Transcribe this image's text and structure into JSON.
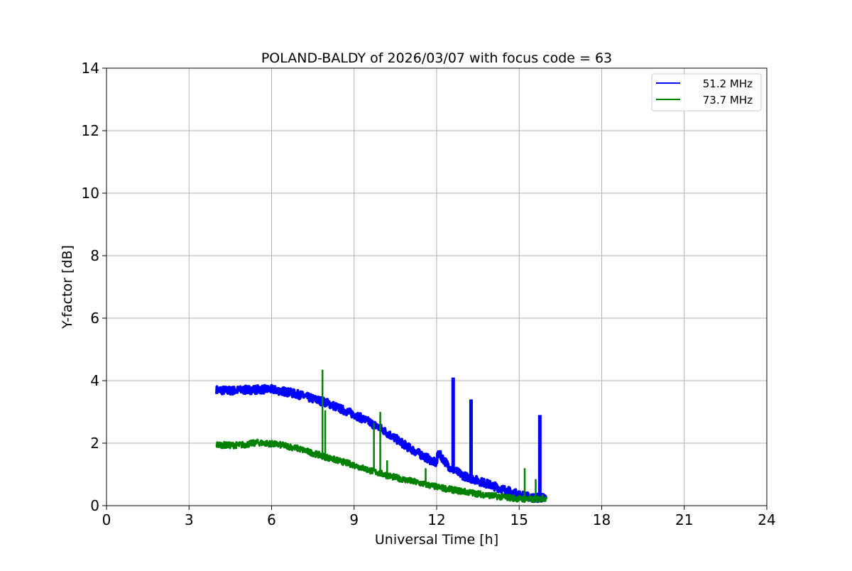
{
  "chart_data": {
    "type": "line",
    "title": "POLAND-BALDY of 2026/03/07 with focus code = 63",
    "xlabel": "Universal Time [h]",
    "ylabel": "Y-factor [dB]",
    "xlim": [
      0,
      24
    ],
    "ylim": [
      0,
      14
    ],
    "xticks": [
      0,
      3,
      6,
      9,
      12,
      15,
      18,
      21,
      24
    ],
    "yticks": [
      0,
      2,
      4,
      6,
      8,
      10,
      12,
      14
    ],
    "grid": true,
    "legend_position": "top-right",
    "series": [
      {
        "name": "51.2 MHz",
        "color": "#0000ff",
        "x": [
          4.0,
          4.5,
          5.0,
          5.5,
          6.0,
          6.5,
          7.0,
          7.5,
          8.0,
          8.5,
          9.0,
          9.5,
          10.0,
          10.5,
          11.0,
          11.5,
          12.0,
          12.05,
          12.5,
          13.0,
          13.5,
          14.0,
          14.5,
          15.0,
          15.5,
          16.0
        ],
        "y": [
          3.7,
          3.68,
          3.7,
          3.72,
          3.72,
          3.65,
          3.55,
          3.42,
          3.3,
          3.1,
          2.92,
          2.7,
          2.45,
          2.15,
          1.85,
          1.6,
          1.35,
          1.7,
          1.2,
          0.95,
          0.8,
          0.65,
          0.5,
          0.35,
          0.25,
          0.25
        ],
        "spikes": [
          {
            "x": 12.6,
            "y": 4.1
          },
          {
            "x": 13.25,
            "y": 3.4
          },
          {
            "x": 15.75,
            "y": 2.9
          }
        ]
      },
      {
        "name": "73.7 MHz",
        "color": "#008000",
        "x": [
          4.0,
          4.5,
          5.0,
          5.5,
          6.0,
          6.5,
          7.0,
          7.5,
          8.0,
          8.5,
          9.0,
          9.5,
          10.0,
          10.5,
          11.0,
          11.5,
          12.0,
          12.5,
          13.0,
          13.5,
          14.0,
          14.5,
          15.0,
          15.5,
          16.0
        ],
        "y": [
          1.95,
          1.93,
          1.95,
          2.02,
          1.98,
          1.92,
          1.82,
          1.68,
          1.55,
          1.42,
          1.3,
          1.15,
          1.02,
          0.9,
          0.8,
          0.7,
          0.6,
          0.52,
          0.45,
          0.38,
          0.32,
          0.27,
          0.22,
          0.2,
          0.25
        ],
        "spikes": [
          {
            "x": 7.85,
            "y": 4.35
          },
          {
            "x": 7.95,
            "y": 3.05
          },
          {
            "x": 9.72,
            "y": 2.65
          },
          {
            "x": 9.95,
            "y": 3.0
          },
          {
            "x": 10.2,
            "y": 1.45
          },
          {
            "x": 11.6,
            "y": 1.2
          },
          {
            "x": 15.2,
            "y": 1.2
          },
          {
            "x": 15.6,
            "y": 0.85
          }
        ]
      }
    ]
  }
}
